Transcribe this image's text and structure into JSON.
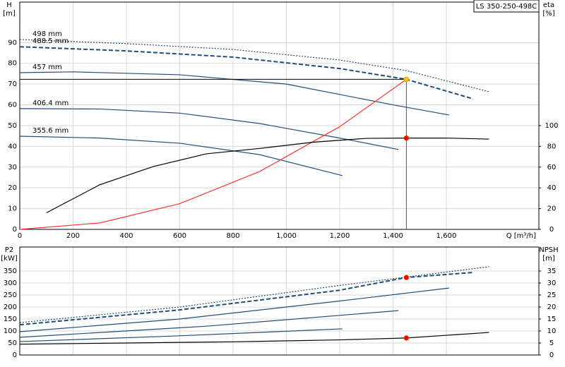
{
  "chart_data": [
    {
      "type": "line",
      "product_label": "LS 350-250-498C",
      "y_label": "H",
      "y_unit": "[m]",
      "y2_label": "eta",
      "y2_unit": "[%]",
      "x_label": "Q [m³/h]",
      "xlim": [
        0,
        1947
      ],
      "ylim": [
        0,
        109.5
      ],
      "y2lim": [
        0,
        219
      ],
      "xticks": [
        0,
        200,
        400,
        600,
        800,
        {
          "value": 1000,
          "label": "1,000"
        },
        {
          "value": 1200,
          "label": "1,200"
        },
        {
          "value": 1400,
          "label": "1,400"
        },
        {
          "value": 1600,
          "label": "1,600"
        }
      ],
      "yticks": [
        0,
        10,
        20,
        30,
        40,
        50,
        60,
        70,
        80,
        90
      ],
      "y2ticks": [
        0,
        20,
        40,
        60,
        80,
        100
      ],
      "grid": true,
      "series": [
        {
          "name": "498 mm",
          "color": "#1f4e79",
          "style": "dotted",
          "x": [
            0,
            400,
            800,
            1200,
            1450,
            1760
          ],
          "values": [
            91.5,
            89.5,
            86.7,
            81.6,
            76.5,
            66.3
          ]
        },
        {
          "name": "488.5 mm",
          "color": "#1f4e79",
          "style": "dashed",
          "x": [
            0,
            400,
            800,
            1200,
            1450,
            1700
          ],
          "values": [
            88,
            86,
            83,
            77.5,
            72.3,
            62.9
          ]
        },
        {
          "name": "457 mm",
          "color": "#1f4e79",
          "style": "solid",
          "x": [
            0,
            200,
            600,
            1000,
            1400,
            1610
          ],
          "values": [
            75.5,
            75.9,
            74.5,
            70,
            60,
            55.1
          ]
        },
        {
          "name": "406.4 mm",
          "color": "#1f4e79",
          "style": "solid",
          "x": [
            0,
            300,
            600,
            900,
            1200,
            1420
          ],
          "values": [
            58.2,
            58,
            56,
            51,
            44,
            38.5
          ]
        },
        {
          "name": "355.6 mm",
          "color": "#1f4e79",
          "style": "solid",
          "x": [
            0,
            300,
            600,
            900,
            1210
          ],
          "values": [
            44.9,
            44,
            41.5,
            36,
            25.9
          ]
        },
        {
          "color": "#ff3333",
          "style": "solid",
          "x": [
            0,
            300,
            600,
            900,
            1200,
            1450
          ],
          "values": [
            0,
            3.1,
            12.4,
            27.9,
            49.5,
            72.3
          ]
        },
        {
          "color": "#000000",
          "style": "solid",
          "axis": "y2",
          "x": [
            100,
            300,
            500,
            700,
            900,
            1100,
            1300,
            1450,
            1600,
            1760
          ],
          "values": [
            16,
            43,
            60.5,
            72.8,
            78,
            84,
            87.7,
            88,
            88,
            87
          ]
        }
      ],
      "markers": [
        {
          "x": 1450,
          "y": 72.3,
          "color": "#f5c400",
          "guides": true
        },
        {
          "x": 1450,
          "y": 88,
          "axis": "y2",
          "color": "#ff0000"
        }
      ]
    },
    {
      "type": "line",
      "y_label": "P2",
      "y_unit": "[kW]",
      "y2_label": "NPSH",
      "y2_unit": "[m]",
      "xlim": [
        0,
        1947
      ],
      "ylim": [
        0,
        450
      ],
      "y2lim": [
        0,
        45
      ],
      "yticks": [
        0,
        50,
        100,
        150,
        200,
        250,
        300,
        350
      ],
      "y2ticks": [
        0,
        5,
        10,
        15,
        20,
        25,
        30,
        35
      ],
      "grid": true,
      "series": [
        {
          "color": "#1f4e79",
          "style": "dotted",
          "x": [
            0,
            600,
            1200,
            1760
          ],
          "values": [
            135,
            200,
            290,
            368
          ]
        },
        {
          "color": "#1f4e79",
          "style": "dashed",
          "x": [
            0,
            600,
            1200,
            1450,
            1700
          ],
          "values": [
            126,
            188,
            270,
            323,
            344
          ]
        },
        {
          "color": "#1f4e79",
          "style": "solid",
          "x": [
            0,
            600,
            1200,
            1610
          ],
          "values": [
            97,
            150,
            225,
            279
          ]
        },
        {
          "color": "#1f4e79",
          "style": "solid",
          "x": [
            0,
            700,
            1420
          ],
          "values": [
            74,
            120,
            185
          ]
        },
        {
          "color": "#1f4e79",
          "style": "solid",
          "x": [
            0,
            600,
            1210
          ],
          "values": [
            56,
            80,
            109
          ]
        },
        {
          "color": "#000000",
          "style": "solid",
          "axis": "y2",
          "x": [
            0,
            400,
            800,
            1200,
            1450,
            1760
          ],
          "values": [
            4.5,
            5,
            5.5,
            6.3,
            7.1,
            9.4
          ]
        }
      ],
      "markers": [
        {
          "x": 1450,
          "y": 323,
          "color": "#ff0000"
        },
        {
          "x": 1450,
          "y": 7.1,
          "axis": "y2",
          "color": "#ff0000"
        }
      ]
    }
  ]
}
